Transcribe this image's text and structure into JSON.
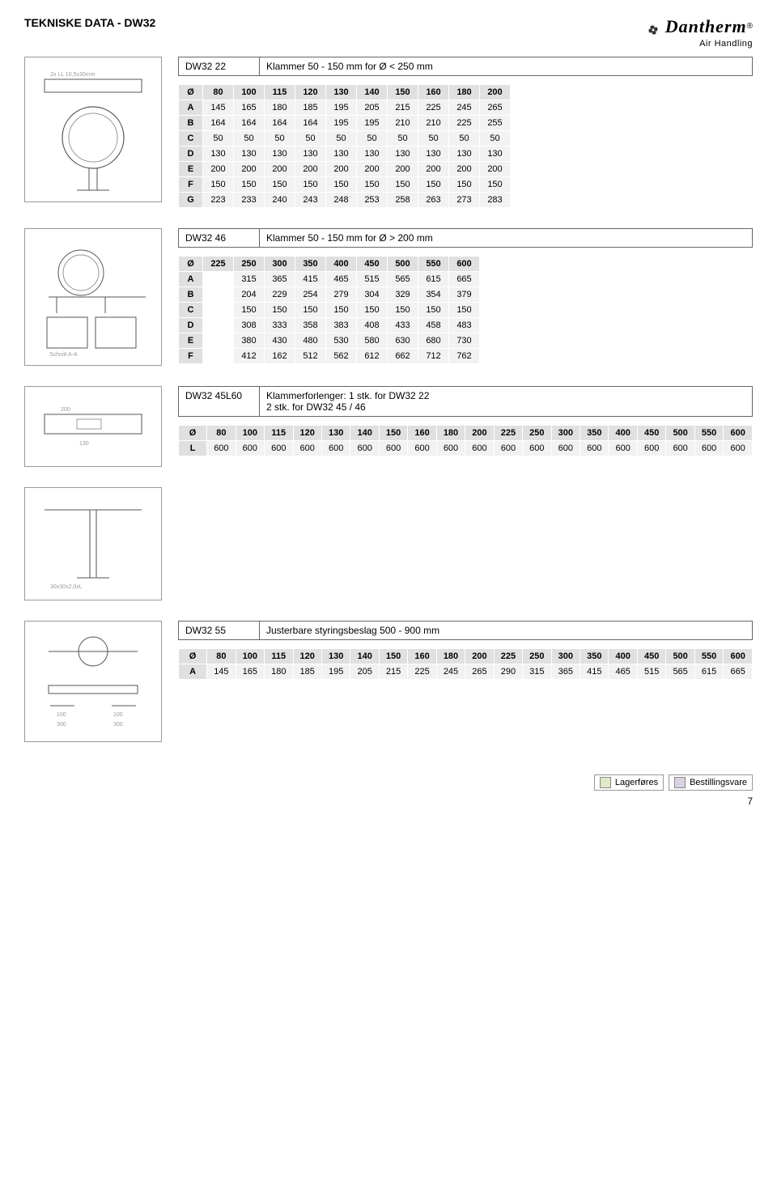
{
  "header": {
    "title": "TEKNISKE DATA - DW32",
    "brand": "Dantherm",
    "brand_sub": "Air Handling"
  },
  "section1": {
    "product": "DW32 22",
    "desc": "Klammer 50 - 150 mm for Ø < 250 mm",
    "thumb_label": "2x LL 10,5x30mm",
    "diameters": [
      "80",
      "100",
      "115",
      "120",
      "130",
      "140",
      "150",
      "160",
      "180",
      "200"
    ],
    "rows": [
      {
        "key": "A",
        "vals": [
          "145",
          "165",
          "180",
          "185",
          "195",
          "205",
          "215",
          "225",
          "245",
          "265"
        ]
      },
      {
        "key": "B",
        "vals": [
          "164",
          "164",
          "164",
          "164",
          "195",
          "195",
          "210",
          "210",
          "225",
          "255"
        ]
      },
      {
        "key": "C",
        "vals": [
          "50",
          "50",
          "50",
          "50",
          "50",
          "50",
          "50",
          "50",
          "50",
          "50"
        ]
      },
      {
        "key": "D",
        "vals": [
          "130",
          "130",
          "130",
          "130",
          "130",
          "130",
          "130",
          "130",
          "130",
          "130"
        ]
      },
      {
        "key": "E",
        "vals": [
          "200",
          "200",
          "200",
          "200",
          "200",
          "200",
          "200",
          "200",
          "200",
          "200"
        ]
      },
      {
        "key": "F",
        "vals": [
          "150",
          "150",
          "150",
          "150",
          "150",
          "150",
          "150",
          "150",
          "150",
          "150"
        ]
      },
      {
        "key": "G",
        "vals": [
          "223",
          "233",
          "240",
          "243",
          "248",
          "253",
          "258",
          "263",
          "273",
          "283"
        ]
      }
    ]
  },
  "section2": {
    "product": "DW32 46",
    "desc": "Klammer 50 - 150 mm for Ø > 200 mm",
    "thumb_label": "Schnitt A-A",
    "diameters": [
      "225",
      "250",
      "300",
      "350",
      "400",
      "450",
      "500",
      "550",
      "600"
    ],
    "rows": [
      {
        "key": "A",
        "vals": [
          "",
          "315",
          "365",
          "415",
          "465",
          "515",
          "565",
          "615",
          "665"
        ]
      },
      {
        "key": "B",
        "vals": [
          "",
          "204",
          "229",
          "254",
          "279",
          "304",
          "329",
          "354",
          "379"
        ]
      },
      {
        "key": "C",
        "vals": [
          "",
          "150",
          "150",
          "150",
          "150",
          "150",
          "150",
          "150",
          "150"
        ]
      },
      {
        "key": "D",
        "vals": [
          "",
          "308",
          "333",
          "358",
          "383",
          "408",
          "433",
          "458",
          "483"
        ]
      },
      {
        "key": "E",
        "vals": [
          "",
          "380",
          "430",
          "480",
          "530",
          "580",
          "630",
          "680",
          "730"
        ]
      },
      {
        "key": "F",
        "vals": [
          "",
          "412",
          "162",
          "512",
          "562",
          "612",
          "662",
          "712",
          "762"
        ]
      }
    ]
  },
  "section3": {
    "product": "DW32 45L60",
    "desc": "Klammerforlenger: 1 stk. for DW32 22\n2 stk. for DW32 45 / 46",
    "diameters": [
      "80",
      "100",
      "115",
      "120",
      "130",
      "140",
      "150",
      "160",
      "180",
      "200",
      "225",
      "250",
      "300",
      "350",
      "400",
      "450",
      "500",
      "550",
      "600"
    ],
    "rows": [
      {
        "key": "L",
        "vals": [
          "600",
          "600",
          "600",
          "600",
          "600",
          "600",
          "600",
          "600",
          "600",
          "600",
          "600",
          "600",
          "600",
          "600",
          "600",
          "600",
          "600",
          "600",
          "600"
        ]
      }
    ]
  },
  "section4": {
    "product": "DW32 55",
    "desc": "Justerbare styringsbeslag 500 - 900 mm",
    "diameters": [
      "80",
      "100",
      "115",
      "120",
      "130",
      "140",
      "150",
      "160",
      "180",
      "200",
      "225",
      "250",
      "300",
      "350",
      "400",
      "450",
      "500",
      "550",
      "600"
    ],
    "rows": [
      {
        "key": "A",
        "vals": [
          "145",
          "165",
          "180",
          "185",
          "195",
          "205",
          "215",
          "225",
          "245",
          "265",
          "290",
          "315",
          "365",
          "415",
          "465",
          "515",
          "565",
          "615",
          "665"
        ]
      }
    ]
  },
  "legend": {
    "stock": "Lagerføres",
    "stock_color": "#dfe8c8",
    "order": "Bestillingsvare",
    "order_color": "#d9d2e0"
  },
  "page_number": "7",
  "colors": {
    "header_bg": "#e0e0e0",
    "cell_bg": "#f2f2f2",
    "border": "#ffffff"
  }
}
